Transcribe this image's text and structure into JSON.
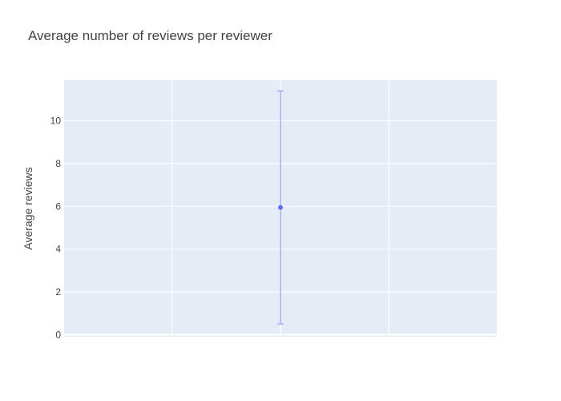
{
  "chart_data": {
    "type": "scatter",
    "title": "Average number of reviews per reviewer",
    "xlabel": "",
    "ylabel": "Average reviews",
    "x": [
      0
    ],
    "xlim": [
      -2,
      2
    ],
    "ylim": [
      -0.1,
      11.9
    ],
    "yticks": [
      0,
      2,
      4,
      6,
      8,
      10
    ],
    "xgrid": [
      -1,
      0,
      1
    ],
    "series": [
      {
        "values": [
          5.95
        ],
        "error_low": [
          0.5
        ],
        "error_high": [
          11.4
        ]
      }
    ],
    "grid": true,
    "legend": "none",
    "colors": {
      "plot_bg": "#E5ECF6",
      "grid": "#FFFFFF",
      "marker": "#636EFA",
      "error_bar": "#A9AEF7",
      "text": "#444444"
    }
  }
}
